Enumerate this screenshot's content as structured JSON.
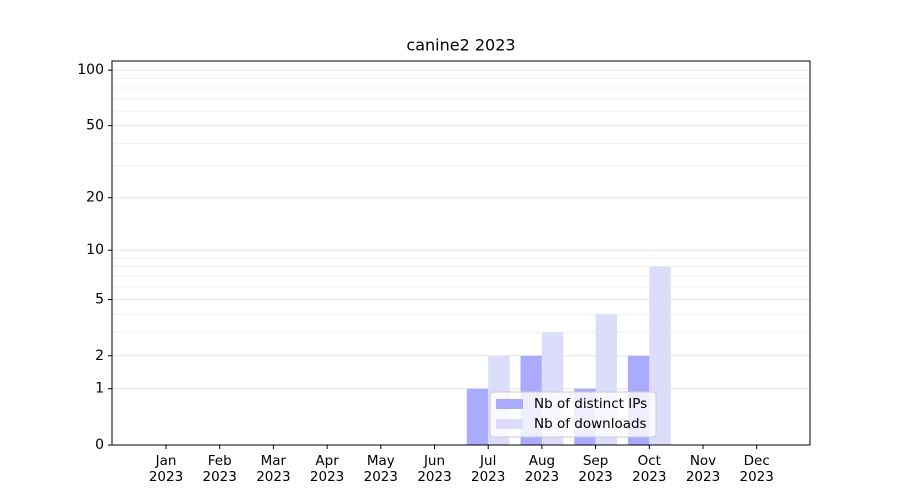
{
  "chart_data": {
    "type": "bar",
    "title": "canine2 2023",
    "categories": [
      "Jan\n2023",
      "Feb\n2023",
      "Mar\n2023",
      "Apr\n2023",
      "May\n2023",
      "Jun\n2023",
      "Jul\n2023",
      "Aug\n2023",
      "Sep\n2023",
      "Oct\n2023",
      "Nov\n2023",
      "Dec\n2023"
    ],
    "series": [
      {
        "name": "Nb of distinct IPs",
        "color": "#aaaaff",
        "values": [
          0,
          0,
          0,
          0,
          0,
          0,
          1,
          2,
          1,
          2,
          0,
          0
        ]
      },
      {
        "name": "Nb of downloads",
        "color": "#dcdcfb",
        "values": [
          0,
          0,
          0,
          0,
          0,
          0,
          2,
          3,
          4,
          8,
          0,
          0
        ]
      }
    ],
    "yscale": "log1p",
    "ylim": [
      0,
      112
    ],
    "yticks": [
      0,
      1,
      2,
      5,
      10,
      20,
      50,
      100
    ],
    "minor_yticks": [
      3,
      4,
      6,
      7,
      8,
      9,
      30,
      40,
      60,
      70,
      80,
      90
    ],
    "grid": true,
    "legend": "lower center"
  }
}
